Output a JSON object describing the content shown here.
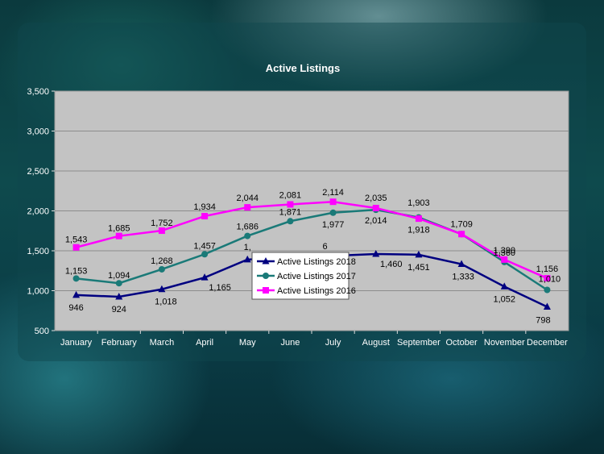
{
  "chart_data": {
    "type": "line",
    "title": "Active Listings",
    "xlabel": "",
    "ylabel": "",
    "categories": [
      "January",
      "February",
      "March",
      "April",
      "May",
      "June",
      "July",
      "August",
      "September",
      "October",
      "November",
      "December"
    ],
    "ylim": [
      500,
      3500
    ],
    "yticks": [
      "500",
      "1,000",
      "1,500",
      "2,000",
      "2,500",
      "3,000",
      "3,500"
    ],
    "grid": true,
    "legend_position": "center",
    "series": [
      {
        "name": "Active Listings 2018",
        "color": "#000080",
        "marker": "triangle",
        "values": [
          946,
          924,
          1018,
          1165,
          1390,
          null,
          null,
          1460,
          1451,
          1333,
          1052,
          798
        ],
        "labels": [
          "946",
          "924",
          "1,018",
          "1,165",
          "1,",
          "",
          "6",
          "1,460",
          "1,451",
          "1,333",
          "1,052",
          "798"
        ]
      },
      {
        "name": "Active Listings 2017",
        "color": "#1a7a78",
        "marker": "circle",
        "values": [
          1153,
          1094,
          1268,
          1457,
          1686,
          1871,
          1977,
          2014,
          1918,
          1709,
          1360,
          1010
        ],
        "labels": [
          "1,153",
          "1,094",
          "1,268",
          "1,457",
          "1,686",
          "1,871",
          "1,977",
          "2,014",
          "1,918",
          "",
          "1,360",
          "1,010"
        ]
      },
      {
        "name": "Active Listings 2016",
        "color": "#ff00ff",
        "marker": "square",
        "values": [
          1543,
          1685,
          1752,
          1934,
          2044,
          2081,
          2114,
          2035,
          1903,
          1709,
          1390,
          1156
        ],
        "labels": [
          "1,543",
          "1,685",
          "1,752",
          "1,934",
          "2,044",
          "2,081",
          "2,114",
          "2,035",
          "1,903",
          "1,709",
          "1,390",
          "1,156"
        ]
      }
    ]
  }
}
